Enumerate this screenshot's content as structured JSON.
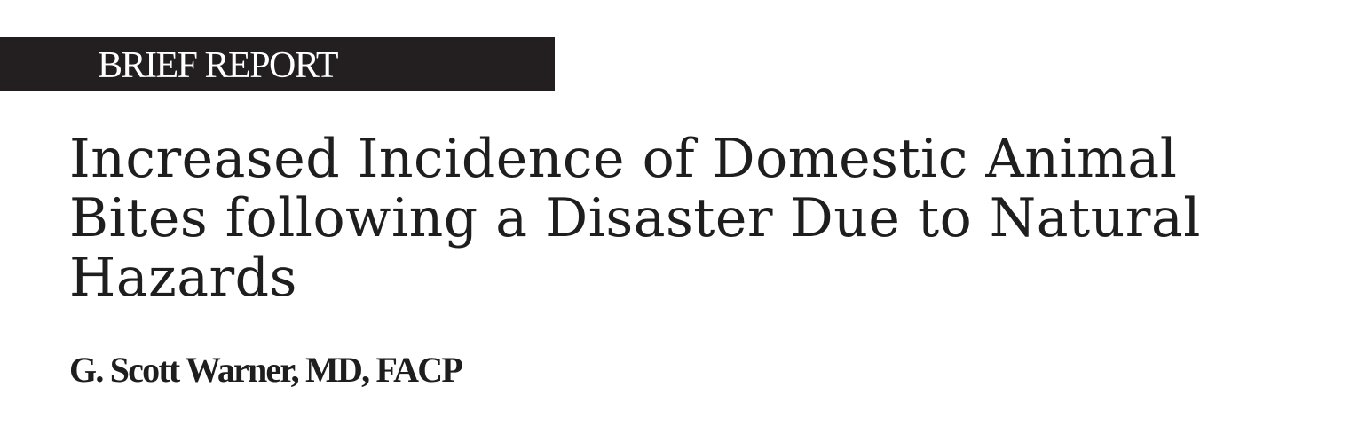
{
  "banner": {
    "label": "BRIEF REPORT",
    "background_color": "#231f20",
    "text_color": "#ffffff"
  },
  "article": {
    "title_lines": [
      "Increased Incidence of Domestic Animal",
      "Bites following a Disaster Due to Natural",
      "Hazards"
    ],
    "author": "G. Scott Warner, MD, FACP"
  }
}
